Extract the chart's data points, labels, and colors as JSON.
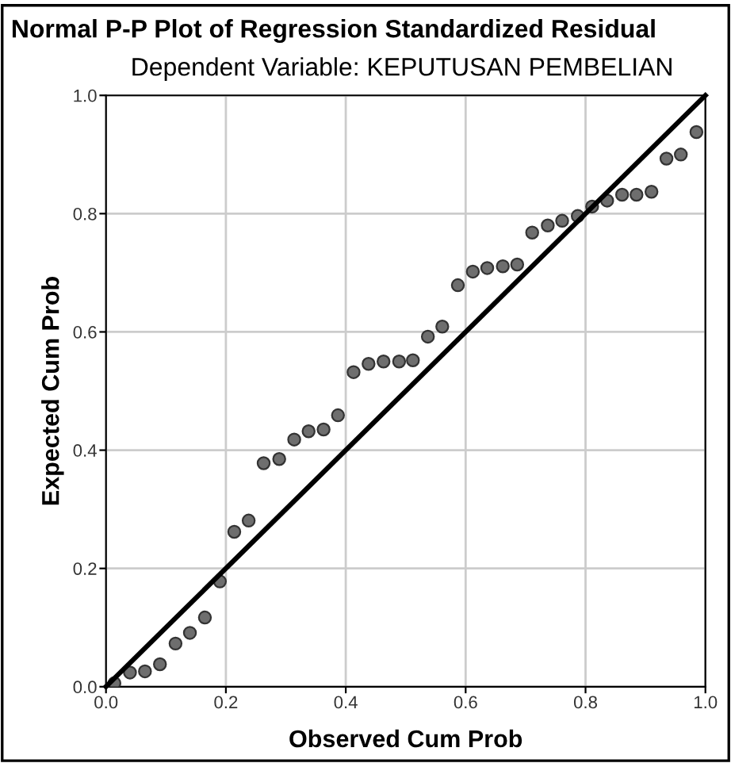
{
  "chart_data": {
    "type": "scatter",
    "title": "Normal P-P Plot of Regression Standardized Residual",
    "subtitle": "Dependent Variable: KEPUTUSAN PEMBELIAN",
    "xlabel": "Observed Cum Prob",
    "ylabel": "Expected Cum Prob",
    "xlim": [
      0,
      1
    ],
    "ylim": [
      0,
      1
    ],
    "xticks": [
      {
        "value": 0,
        "label": "0.0"
      },
      0.2,
      0.4,
      0.6,
      0.8,
      {
        "value": 1,
        "label": "1.0"
      }
    ],
    "yticks": [
      {
        "value": 0,
        "label": "0.0"
      },
      0.2,
      0.4,
      0.6,
      0.8,
      {
        "value": 1,
        "label": "1.0"
      }
    ],
    "grid": true,
    "marker": "circle",
    "series": [
      {
        "color": "#6e6e6e",
        "x": [
          0.014,
          0.04,
          0.065,
          0.09,
          0.116,
          0.14,
          0.165,
          0.19,
          0.214,
          0.238,
          0.263,
          0.289,
          0.314,
          0.338,
          0.363,
          0.387,
          0.413,
          0.438,
          0.463,
          0.489,
          0.512,
          0.537,
          0.561,
          0.587,
          0.612,
          0.636,
          0.662,
          0.686,
          0.711,
          0.737,
          0.761,
          0.787,
          0.811,
          0.836,
          0.861,
          0.885,
          0.91,
          0.935,
          0.959,
          0.985
        ],
        "values": [
          0.006,
          0.024,
          0.026,
          0.038,
          0.073,
          0.091,
          0.117,
          0.178,
          0.262,
          0.281,
          0.378,
          0.385,
          0.418,
          0.432,
          0.435,
          0.459,
          0.532,
          0.546,
          0.55,
          0.55,
          0.552,
          0.592,
          0.609,
          0.679,
          0.702,
          0.708,
          0.711,
          0.714,
          0.768,
          0.78,
          0.788,
          0.796,
          0.812,
          0.822,
          0.832,
          0.832,
          0.837,
          0.893,
          0.9,
          0.938
        ]
      },
      {
        "type": "line",
        "color": "#000000",
        "x": [
          0,
          1
        ],
        "values": [
          0,
          1
        ],
        "marker": "none",
        "line_style": "solid"
      }
    ]
  }
}
